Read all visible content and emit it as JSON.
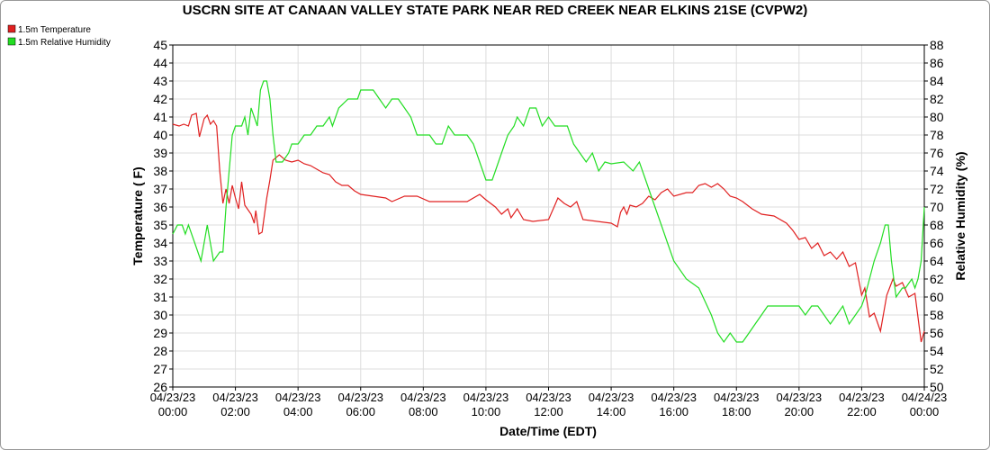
{
  "chart_data": {
    "type": "line",
    "title": "USCRN SITE AT CANAAN VALLEY STATE PARK NEAR RED CREEK NEAR ELKINS 21SE (CVPW2)",
    "xlabel": "Date/Time (EDT)",
    "ylabel": "Temperature ( F)",
    "y2label": "Relative Humidity (%)",
    "grid": true,
    "legend": "top-left",
    "xlim": [
      0,
      24
    ],
    "xticks": [
      {
        "value": 0,
        "label": "04/23/23 00:00"
      },
      {
        "value": 2,
        "label": "04/23/23 02:00"
      },
      {
        "value": 4,
        "label": "04/23/23 04:00"
      },
      {
        "value": 6,
        "label": "04/23/23 06:00"
      },
      {
        "value": 8,
        "label": "04/23/23 08:00"
      },
      {
        "value": 10,
        "label": "04/23/23 10:00"
      },
      {
        "value": 12,
        "label": "04/23/23 12:00"
      },
      {
        "value": 14,
        "label": "04/23/23 14:00"
      },
      {
        "value": 16,
        "label": "04/23/23 16:00"
      },
      {
        "value": 18,
        "label": "04/23/23 18:00"
      },
      {
        "value": 20,
        "label": "04/23/23 20:00"
      },
      {
        "value": 22,
        "label": "04/23/23 22:00"
      },
      {
        "value": 24,
        "label": "04/24/23 00:00"
      }
    ],
    "ylim": [
      26,
      45
    ],
    "yticks": [
      26,
      27,
      28,
      29,
      30,
      31,
      32,
      33,
      34,
      35,
      36,
      37,
      38,
      39,
      40,
      41,
      42,
      43,
      44,
      45
    ],
    "y2lim": [
      50,
      88
    ],
    "y2ticks": [
      50,
      52,
      54,
      56,
      58,
      60,
      62,
      64,
      66,
      68,
      70,
      72,
      74,
      76,
      78,
      80,
      82,
      84,
      86,
      88
    ],
    "series": [
      {
        "name": "1.5m Temperature",
        "color": "#e02020",
        "x": [
          0,
          0.2,
          0.35,
          0.5,
          0.6,
          0.75,
          0.85,
          1.0,
          1.1,
          1.2,
          1.3,
          1.4,
          1.5,
          1.6,
          1.7,
          1.8,
          1.9,
          2.0,
          2.1,
          2.2,
          2.3,
          2.5,
          2.6,
          2.65,
          2.75,
          2.85,
          3.0,
          3.1,
          3.2,
          3.4,
          3.6,
          3.8,
          4.0,
          4.2,
          4.4,
          4.6,
          4.8,
          5.0,
          5.2,
          5.4,
          5.6,
          5.8,
          6.0,
          6.4,
          6.8,
          7.0,
          7.4,
          7.8,
          8.2,
          8.6,
          9.0,
          9.4,
          9.8,
          10.0,
          10.3,
          10.5,
          10.7,
          10.8,
          11.0,
          11.2,
          11.5,
          12.0,
          12.2,
          12.3,
          12.5,
          12.7,
          12.9,
          13.0,
          13.1,
          14.0,
          14.2,
          14.3,
          14.4,
          14.5,
          14.6,
          14.8,
          15.0,
          15.2,
          15.4,
          15.6,
          15.8,
          16.0,
          16.4,
          16.6,
          16.8,
          17.0,
          17.2,
          17.4,
          17.6,
          17.8,
          18.0,
          18.2,
          18.5,
          18.8,
          19.2,
          19.6,
          19.8,
          20.0,
          20.2,
          20.4,
          20.6,
          20.8,
          21.0,
          21.2,
          21.4,
          21.6,
          21.8,
          22.0,
          22.1,
          22.25,
          22.4,
          22.6,
          22.8,
          23.0,
          23.1,
          23.3,
          23.5,
          23.7,
          23.9,
          24.0
        ],
        "values": [
          40.6,
          40.5,
          40.6,
          40.5,
          41.1,
          41.2,
          39.9,
          40.9,
          41.1,
          40.6,
          40.8,
          40.5,
          38,
          36.2,
          37,
          36.2,
          37.2,
          36.5,
          35.9,
          37.4,
          36.1,
          35.6,
          35.1,
          35.8,
          34.5,
          34.6,
          36.5,
          37.5,
          38.6,
          38.9,
          38.6,
          38.5,
          38.6,
          38.4,
          38.3,
          38.1,
          37.9,
          37.8,
          37.4,
          37.2,
          37.2,
          36.9,
          36.7,
          36.6,
          36.5,
          36.3,
          36.6,
          36.6,
          36.3,
          36.3,
          36.3,
          36.3,
          36.7,
          36.4,
          36.0,
          35.6,
          35.9,
          35.4,
          35.9,
          35.3,
          35.2,
          35.3,
          36.1,
          36.5,
          36.2,
          36.0,
          36.3,
          35.8,
          35.3,
          35.1,
          34.9,
          35.7,
          36.0,
          35.6,
          36.1,
          36.0,
          36.2,
          36.6,
          36.4,
          36.8,
          37.0,
          36.6,
          36.8,
          36.8,
          37.2,
          37.3,
          37.1,
          37.3,
          37.0,
          36.6,
          36.5,
          36.3,
          35.9,
          35.6,
          35.5,
          35.1,
          34.7,
          34.2,
          34.3,
          33.7,
          34.0,
          33.3,
          33.5,
          33.1,
          33.5,
          32.7,
          32.9,
          31.1,
          31.5,
          29.9,
          30.1,
          29.1,
          31.1,
          32.0,
          31.6,
          31.8,
          31.0,
          31.2,
          28.5,
          29.1
        ]
      },
      {
        "name": "1.5m Relative Humidity",
        "color": "#22dd22",
        "axis": "y2",
        "x": [
          0,
          0.15,
          0.3,
          0.4,
          0.5,
          0.7,
          0.9,
          1.0,
          1.1,
          1.3,
          1.5,
          1.6,
          1.7,
          1.9,
          2.0,
          2.2,
          2.3,
          2.4,
          2.5,
          2.6,
          2.7,
          2.8,
          2.9,
          3.0,
          3.1,
          3.2,
          3.3,
          3.5,
          3.7,
          3.8,
          4.0,
          4.2,
          4.4,
          4.6,
          4.8,
          5.0,
          5.1,
          5.3,
          5.6,
          5.9,
          6.0,
          6.4,
          6.6,
          6.8,
          7.0,
          7.2,
          7.4,
          7.6,
          7.8,
          8.2,
          8.4,
          8.6,
          8.8,
          9.0,
          9.4,
          9.6,
          9.8,
          10.0,
          10.2,
          10.3,
          10.5,
          10.7,
          10.9,
          11.0,
          11.2,
          11.4,
          11.6,
          11.8,
          12.0,
          12.2,
          12.6,
          12.8,
          13.0,
          13.2,
          13.4,
          13.6,
          13.8,
          14.0,
          14.4,
          14.7,
          14.9,
          15.1,
          15.3,
          15.6,
          15.8,
          16.0,
          16.4,
          16.8,
          17.2,
          17.4,
          17.6,
          17.8,
          18.0,
          18.2,
          18.4,
          18.6,
          18.8,
          19.0,
          19.6,
          20.0,
          20.2,
          20.4,
          20.6,
          20.8,
          21.0,
          21.2,
          21.4,
          21.6,
          21.8,
          22.0,
          22.1,
          22.25,
          22.4,
          22.6,
          22.75,
          22.85,
          22.95,
          23.1,
          23.3,
          23.4,
          23.6,
          23.7,
          23.8,
          23.9,
          24.0
        ],
        "values": [
          67,
          68,
          68,
          67,
          68,
          66,
          64,
          66,
          68,
          64,
          65,
          65,
          70,
          78,
          79,
          79,
          80,
          78,
          81,
          80,
          79,
          83,
          84,
          84,
          82,
          78,
          75,
          75,
          76,
          77,
          77,
          78,
          78,
          79,
          79,
          80,
          79,
          81,
          82,
          82,
          83,
          83,
          82,
          81,
          82,
          82,
          81,
          80,
          78,
          78,
          77,
          77,
          79,
          78,
          78,
          77,
          75,
          73,
          73,
          74,
          76,
          78,
          79,
          80,
          79,
          81,
          81,
          79,
          80,
          79,
          79,
          77,
          76,
          75,
          76,
          74,
          75,
          74.8,
          75,
          74,
          75,
          73,
          71,
          68,
          66,
          64,
          62,
          61,
          58,
          56,
          55,
          56,
          55,
          55,
          56,
          57,
          58,
          59,
          59,
          59,
          58,
          59,
          59,
          58,
          57,
          58,
          59,
          57,
          58,
          59,
          60,
          62,
          64,
          66,
          68,
          68,
          64,
          60,
          61,
          61,
          62,
          61,
          62,
          64,
          70
        ]
      }
    ]
  }
}
